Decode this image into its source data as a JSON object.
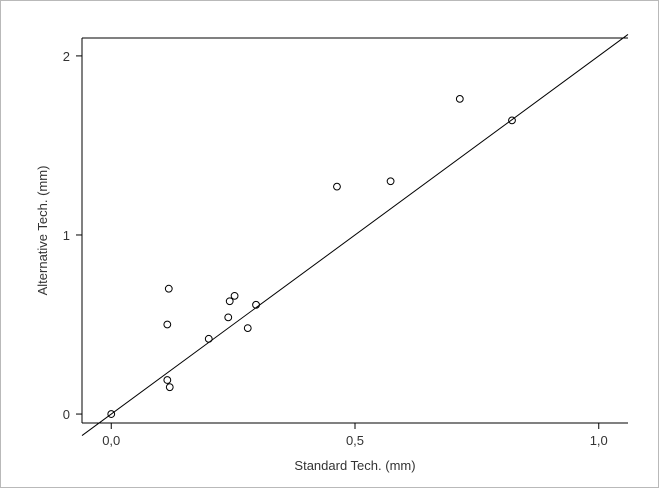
{
  "chart_data": {
    "type": "scatter",
    "title": "",
    "xlabel": "Standard Tech. (mm)",
    "ylabel": "Alternative Tech. (mm)",
    "xlim": [
      -0.06,
      1.06
    ],
    "ylim": [
      -0.05,
      2.1
    ],
    "xticks": [
      0.0,
      0.5,
      1.0
    ],
    "xtick_labels": [
      "0,0",
      "0,5",
      "1,0"
    ],
    "yticks": [
      0,
      1,
      2
    ],
    "ytick_labels": [
      "0",
      "1",
      "2"
    ],
    "grid": false,
    "legend": "none",
    "reference_line": {
      "type": "identity-fit",
      "from": [
        -0.06,
        -0.12
      ],
      "to": [
        1.06,
        2.12
      ]
    },
    "points": [
      {
        "x": 0.0,
        "y": 0.0
      },
      {
        "x": 0.115,
        "y": 0.19
      },
      {
        "x": 0.12,
        "y": 0.15
      },
      {
        "x": 0.115,
        "y": 0.5
      },
      {
        "x": 0.118,
        "y": 0.7
      },
      {
        "x": 0.2,
        "y": 0.42
      },
      {
        "x": 0.24,
        "y": 0.54
      },
      {
        "x": 0.243,
        "y": 0.63
      },
      {
        "x": 0.253,
        "y": 0.66
      },
      {
        "x": 0.28,
        "y": 0.48
      },
      {
        "x": 0.297,
        "y": 0.61
      },
      {
        "x": 0.463,
        "y": 1.27
      },
      {
        "x": 0.573,
        "y": 1.3
      },
      {
        "x": 0.715,
        "y": 1.76
      },
      {
        "x": 0.822,
        "y": 1.64
      }
    ],
    "colors": {
      "axis": "#000000",
      "text": "#333333",
      "marker": "#000000",
      "frame": "#b9b9b9"
    }
  }
}
